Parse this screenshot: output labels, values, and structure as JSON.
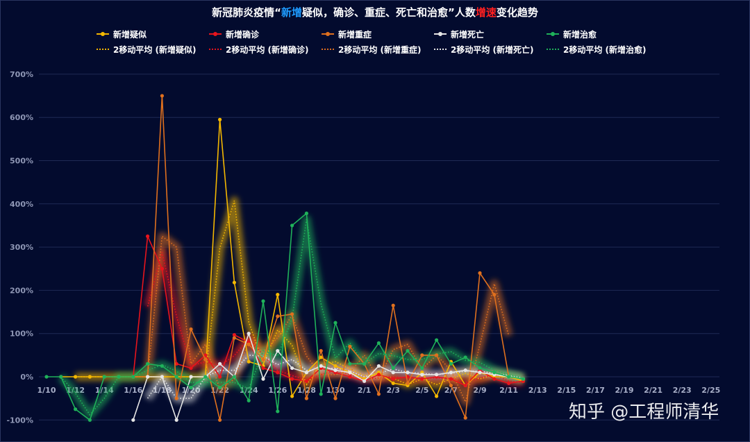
{
  "title": {
    "part1": "新冠肺炎疫情“",
    "blue": "新增",
    "part2": "疑似，确诊、重症、死亡和治愈”人数",
    "red": "增速",
    "part3": "变化趋势",
    "blue_color": "#1e9bff",
    "red_color": "#ff2020"
  },
  "watermark": "知乎 @工程师清华",
  "legend": {
    "row1": [
      {
        "label": "新增疑似",
        "color": "#f5b800"
      },
      {
        "label": "新增确诊",
        "color": "#e8141c"
      },
      {
        "label": "新增重症",
        "color": "#e0701e"
      },
      {
        "label": "新增死亡",
        "color": "#e6e6e6"
      },
      {
        "label": "新增治愈",
        "color": "#1fb25a"
      }
    ],
    "row2": [
      {
        "label": "2移动平均 (新增疑似)",
        "color": "#f5b800"
      },
      {
        "label": "2移动平均 (新增确诊)",
        "color": "#e8141c"
      },
      {
        "label": "2移动平均 (新增重症)",
        "color": "#e0701e"
      },
      {
        "label": "2移动平均 (新增死亡)",
        "color": "#e6e6e6"
      },
      {
        "label": "2移动平均 (新增治愈)",
        "color": "#1fb25a"
      }
    ]
  },
  "chart_data": {
    "type": "line",
    "title": "新冠肺炎疫情“新增疑似，确诊、重症、死亡和治愈”人数增速变化趋势",
    "xlabel": "",
    "ylabel": "",
    "ylim": [
      -100,
      700
    ],
    "y_ticks": [
      "700%",
      "600%",
      "500%",
      "400%",
      "300%",
      "200%",
      "100%",
      "0%",
      "-100%"
    ],
    "x_tick_labels": [
      "1/10",
      "1/12",
      "1/14",
      "1/16",
      "1/18",
      "1/20",
      "1/22",
      "1/24",
      "1/26",
      "1/28",
      "1/30",
      "2/1",
      "2/3",
      "2/5",
      "2/7",
      "2/9",
      "2/11",
      "2/13",
      "2/15",
      "2/17",
      "2/19",
      "2/21",
      "2/23",
      "2/25"
    ],
    "grid": true,
    "legend_position": "top",
    "x": [
      "1/10",
      "1/11",
      "1/12",
      "1/13",
      "1/14",
      "1/15",
      "1/16",
      "1/17",
      "1/18",
      "1/19",
      "1/20",
      "1/21",
      "1/22",
      "1/23",
      "1/24",
      "1/25",
      "1/26",
      "1/27",
      "1/28",
      "1/29",
      "1/30",
      "1/31",
      "2/1",
      "2/2",
      "2/3",
      "2/4",
      "2/5",
      "2/6",
      "2/7",
      "2/8",
      "2/9",
      "2/10",
      "2/11",
      "2/12"
    ],
    "series": [
      {
        "name": "新增疑似",
        "color": "#f5b800",
        "values": [
          null,
          0,
          0,
          0,
          0,
          0,
          0,
          0,
          0,
          0,
          0,
          0,
          595,
          218,
          35,
          25,
          190,
          -45,
          10,
          45,
          25,
          10,
          -5,
          10,
          -15,
          -20,
          10,
          -45,
          35,
          -20,
          10,
          0,
          0,
          -10
        ]
      },
      {
        "name": "新增确诊",
        "color": "#e8141c",
        "values": [
          null,
          null,
          null,
          null,
          null,
          null,
          0,
          325,
          250,
          30,
          20,
          50,
          0,
          97,
          80,
          20,
          10,
          -5,
          -10,
          20,
          10,
          0,
          -10,
          5,
          -5,
          0,
          -5,
          0,
          -5,
          -20,
          15,
          -5,
          -15,
          -10
        ]
      },
      {
        "name": "新增重症",
        "color": "#e0701e",
        "values": [
          null,
          null,
          null,
          null,
          null,
          null,
          0,
          0,
          650,
          -50,
          110,
          40,
          -100,
          90,
          75,
          40,
          140,
          145,
          -50,
          60,
          -50,
          70,
          30,
          -40,
          165,
          -15,
          50,
          50,
          -20,
          -95,
          240,
          190,
          0,
          null
        ]
      },
      {
        "name": "新增死亡",
        "color": "#e6e6e6",
        "values": [
          null,
          null,
          null,
          null,
          null,
          null,
          -100,
          0,
          0,
          -100,
          0,
          0,
          30,
          0,
          100,
          -5,
          60,
          20,
          10,
          25,
          15,
          10,
          -10,
          25,
          10,
          10,
          5,
          5,
          10,
          15,
          10,
          5,
          0,
          -5
        ]
      },
      {
        "name": "新增治愈",
        "color": "#1fb25a",
        "values": [
          0,
          0,
          -75,
          -100,
          0,
          0,
          0,
          30,
          25,
          0,
          -25,
          0,
          -25,
          0,
          -55,
          175,
          -80,
          350,
          378,
          -40,
          125,
          30,
          30,
          78,
          20,
          60,
          20,
          85,
          30,
          45,
          20,
          10,
          0,
          -5
        ]
      },
      {
        "name": "2移动平均 (新增疑似)",
        "color": "#f5b800",
        "dotted": true,
        "values": [
          null,
          null,
          0,
          0,
          0,
          0,
          0,
          0,
          0,
          0,
          0,
          0,
          298,
          407,
          127,
          30,
          108,
          73,
          -18,
          28,
          35,
          18,
          3,
          3,
          -3,
          -18,
          -5,
          -18,
          -5,
          8,
          -5,
          5,
          0,
          -5
        ]
      },
      {
        "name": "2移动平均 (新增确诊)",
        "color": "#e8141c",
        "dotted": true,
        "values": [
          null,
          null,
          null,
          null,
          null,
          null,
          null,
          163,
          288,
          140,
          25,
          35,
          25,
          49,
          89,
          50,
          15,
          3,
          -8,
          5,
          15,
          5,
          -5,
          -3,
          0,
          -3,
          -3,
          -3,
          -3,
          -13,
          -3,
          5,
          -10,
          -13
        ]
      },
      {
        "name": "2移动平均 (新增重症)",
        "color": "#e0701e",
        "dotted": true,
        "values": [
          null,
          null,
          null,
          null,
          null,
          null,
          null,
          0,
          325,
          300,
          30,
          75,
          -30,
          -5,
          83,
          58,
          90,
          143,
          48,
          5,
          5,
          10,
          50,
          -5,
          63,
          75,
          18,
          50,
          15,
          -58,
          73,
          215,
          95,
          null
        ]
      },
      {
        "name": "2移动平均 (新增死亡)",
        "color": "#e6e6e6",
        "dotted": true,
        "values": [
          null,
          null,
          null,
          null,
          null,
          null,
          null,
          -50,
          0,
          -50,
          -50,
          0,
          15,
          15,
          50,
          48,
          28,
          40,
          15,
          18,
          20,
          13,
          0,
          8,
          18,
          10,
          8,
          5,
          8,
          13,
          13,
          8,
          3,
          -3
        ]
      },
      {
        "name": "2移动平均 (新增治愈)",
        "color": "#1fb25a",
        "dotted": true,
        "values": [
          null,
          0,
          -38,
          -88,
          -50,
          0,
          0,
          15,
          28,
          13,
          -13,
          -13,
          -13,
          -13,
          -28,
          60,
          48,
          135,
          364,
          169,
          43,
          78,
          30,
          54,
          49,
          40,
          40,
          53,
          58,
          38,
          33,
          15,
          5,
          -3
        ]
      }
    ]
  }
}
